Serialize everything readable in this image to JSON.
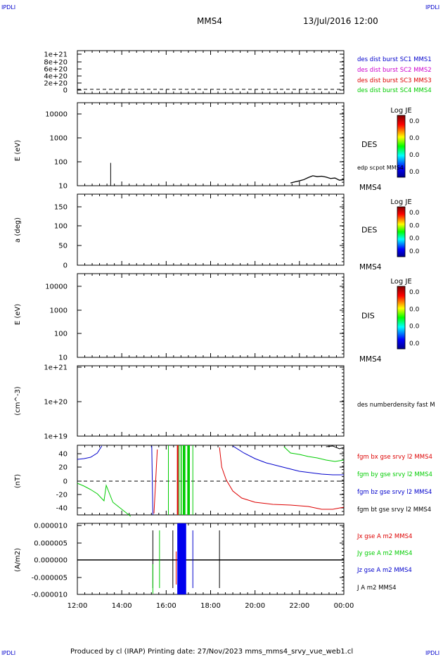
{
  "header": {
    "corner_left_top": "IPDLI",
    "corner_right_top": "IPDLI",
    "corner_left_bottom": "IPDLI",
    "corner_right_bottom": "IPDLI",
    "spacecraft": "MMS4",
    "datetime": "13/Jul/2016 12:00"
  },
  "footer": {
    "text": "Produced by cl (IRAP)   Printing date: 27/Nov/2023   mms_mms4_srvy_vue_web1.cl"
  },
  "colors": {
    "mms1": "#0000cc",
    "mms2": "#cc00cc",
    "mms3": "#dd0000",
    "mms4": "#00cc00",
    "bx": "#dd0000",
    "by": "#00cc00",
    "bz": "#0000cc",
    "bt": "#000000"
  },
  "chart_data": [
    {
      "id": "panel1",
      "type": "line",
      "yticks": [
        "1e+21",
        "8e+20",
        "6e+20",
        "4e+20",
        "2e+20",
        "0"
      ],
      "legend": [
        {
          "label": "des dist burst SC1 MMS1",
          "color": "#0000cc"
        },
        {
          "label": "des dist burst SC2 MMS2",
          "color": "#cc00cc"
        },
        {
          "label": "des dist burst SC3 MMS3",
          "color": "#dd0000"
        },
        {
          "label": "des dist burst SC4 MMS4",
          "color": "#00cc00"
        }
      ],
      "reference_line": 0
    },
    {
      "id": "panel2",
      "type": "heatmap",
      "yscale": "log",
      "ylabel": "E (eV)",
      "yticks": [
        "10000",
        "1000",
        "100",
        "10"
      ],
      "species": "DES",
      "instrument": "MMS4",
      "overlay_label": "edp scpot MMS4",
      "colorbar": {
        "title": "Log JE",
        "ticks": [
          "0.0",
          "0.0",
          "0.0",
          "0.0"
        ]
      },
      "spike_x_hours": 13.5,
      "scpot_series": {
        "x_hours": [
          21.6,
          21.8,
          22.0,
          22.2,
          22.4,
          22.6,
          22.8,
          23.0,
          23.2,
          23.4,
          23.6,
          23.8,
          24.0
        ],
        "y_ev": [
          13,
          14.5,
          16,
          18,
          22,
          26,
          24,
          25,
          23,
          20,
          21,
          17,
          18
        ]
      }
    },
    {
      "id": "panel3",
      "type": "heatmap",
      "ylabel": "a (deg)",
      "yticks": [
        "150",
        "100",
        "50",
        "0"
      ],
      "species": "DES",
      "instrument": "MMS4",
      "colorbar": {
        "title": "Log JE",
        "ticks": [
          "0.0",
          "0.0",
          "0.0",
          "0.0"
        ]
      }
    },
    {
      "id": "panel4",
      "type": "heatmap",
      "yscale": "log",
      "ylabel": "E (eV)",
      "yticks": [
        "10000",
        "1000",
        "100",
        "10"
      ],
      "species": "DIS",
      "instrument": "MMS4",
      "colorbar": {
        "title": "Log JE",
        "ticks": [
          "0.0",
          "0.0",
          "0.0",
          "0.0"
        ]
      }
    },
    {
      "id": "panel5",
      "type": "line",
      "yscale": "log",
      "ylabel": "(cm^-3)",
      "yticks": [
        "1e+21",
        "1e+20",
        "1e+19"
      ],
      "legend": [
        {
          "label": "des numberdensity fast M",
          "color": "#000000"
        }
      ]
    },
    {
      "id": "panel6",
      "type": "line",
      "ylabel": "(nT)",
      "yticks": [
        "40",
        "20",
        "0",
        "-20",
        "-40"
      ],
      "ylim": [
        -50,
        50
      ],
      "reference_line": 0,
      "legend": [
        {
          "label": "fgm bx gse srvy l2 MMS4",
          "color": "#dd0000"
        },
        {
          "label": "fgm by gse srvy l2 MMS4",
          "color": "#00cc00"
        },
        {
          "label": "fgm bz gse srvy l2 MMS4",
          "color": "#0000cc"
        },
        {
          "label": "fgm bt gse srvy l2 MMS4",
          "color": "#000000"
        }
      ],
      "series": [
        {
          "name": "fgm bx gse srvy l2 MMS4",
          "segments": [
            {
              "x": [
                15.45,
                15.6
              ],
              "y": [
                -46,
                45
              ]
            },
            {
              "x": [
                18.4,
                18.5,
                18.7,
                19.0,
                19.4,
                20.0,
                20.8,
                21.6,
                22.4,
                23.0,
                23.5,
                24.0
              ],
              "y": [
                48,
                20,
                2,
                -14,
                -24,
                -30,
                -33,
                -34,
                -36,
                -40,
                -40,
                -37
              ]
            }
          ]
        },
        {
          "name": "fgm by gse srvy l2 MMS4",
          "segments": [
            {
              "x": [
                12.0,
                12.3,
                12.6,
                12.9,
                13.2,
                13.3,
                13.6,
                14.0,
                14.4
              ],
              "y": [
                -3,
                -7,
                -12,
                -18,
                -28,
                -6,
                -30,
                -40,
                -50
              ]
            },
            {
              "x": [
                21.3,
                21.6,
                22.0,
                22.4,
                22.8,
                23.2,
                23.6,
                24.0
              ],
              "y": [
                49,
                40,
                38,
                35,
                33,
                30,
                28,
                30
              ]
            }
          ]
        },
        {
          "name": "fgm bz gse srvy l2 MMS4",
          "segments": [
            {
              "x": [
                12.0,
                12.3,
                12.6,
                12.9,
                13.1
              ],
              "y": [
                31,
                32,
                34,
                40,
                50
              ]
            },
            {
              "x": [
                15.35,
                15.4
              ],
              "y": [
                50,
                -48
              ]
            },
            {
              "x": [
                19.0,
                19.5,
                20.0,
                20.5,
                21.0,
                21.5,
                22.0,
                22.5,
                23.0,
                23.5,
                24.0
              ],
              "y": [
                50,
                40,
                32,
                26,
                22,
                18,
                14,
                12,
                10,
                9,
                9
              ]
            }
          ]
        },
        {
          "name": "fgm bt gse srvy l2 MMS4",
          "segments": [
            {
              "x": [
                23.2,
                23.5,
                23.8,
                24.0
              ],
              "y": [
                49,
                50,
                46,
                48
              ]
            }
          ]
        }
      ],
      "gaps_x_hours": [
        [
          16.5,
          16.55
        ],
        [
          16.65,
          16.7
        ],
        [
          16.75,
          16.85
        ],
        [
          16.95,
          17.05
        ]
      ]
    },
    {
      "id": "panel7",
      "type": "line",
      "ylabel": "(A/m2)",
      "yticks": [
        "0.000010",
        "0.000005",
        "0.000000",
        "-0.000005",
        "-0.000010"
      ],
      "ylim": [
        -1e-05,
        1e-05
      ],
      "legend": [
        {
          "label": "Jx gse A m2 MMS4",
          "color": "#dd0000"
        },
        {
          "label": "Jy gse A m2 MMS4",
          "color": "#00cc00"
        },
        {
          "label": "Jz gse A m2 MMS4",
          "color": "#0000cc"
        },
        {
          "label": "J A m2 MMS4",
          "color": "#000000"
        }
      ],
      "dense_band_x_hours": [
        16.5,
        16.9
      ],
      "spikes_x_hours": [
        15.4,
        15.7,
        16.3,
        17.2,
        18.4
      ]
    }
  ],
  "time_axis": {
    "start_hour": 12,
    "end_hour": 24,
    "labels": [
      "12:00",
      "14:00",
      "16:00",
      "18:00",
      "20:00",
      "22:00",
      "00:00"
    ]
  }
}
